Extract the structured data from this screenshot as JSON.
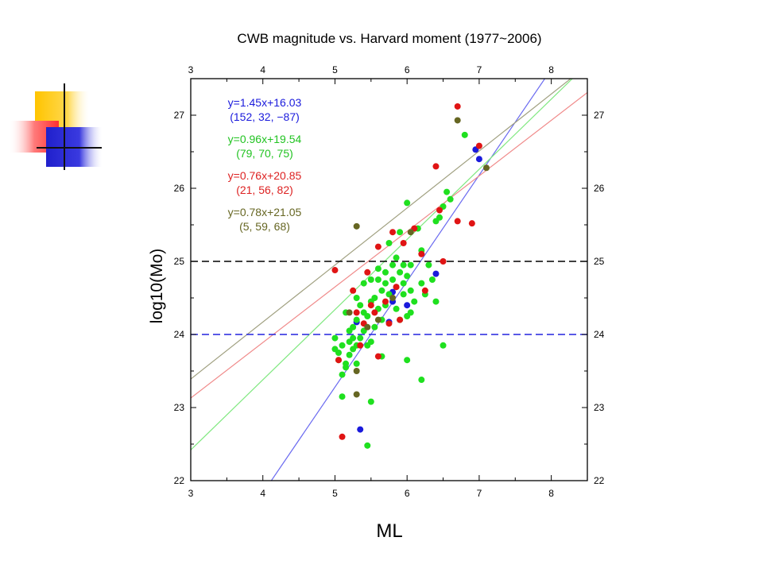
{
  "chart_data": {
    "type": "scatter",
    "title": "CWB magnitude vs. Harvard moment (1977~2006)",
    "xlabel": "ML",
    "ylabel": "log10(Mo)",
    "xlim": [
      3,
      8.5
    ],
    "ylim": [
      22,
      27.5
    ],
    "xticks": [
      "3",
      "4",
      "5",
      "6",
      "7",
      "8"
    ],
    "yticks": [
      "22",
      "23",
      "24",
      "25",
      "26",
      "27"
    ],
    "grid": false,
    "reference_lines": [
      {
        "y": 24,
        "color": "#2222dd",
        "style": "dashed"
      },
      {
        "y": 25,
        "color": "#000000",
        "style": "dashed"
      }
    ],
    "annotations": [
      {
        "equation": "y=1.45x+16.03",
        "params": "(152, 32, −87)",
        "color": "#1a1adc"
      },
      {
        "equation": "y=0.96x+19.54",
        "params": "(79, 70, 75)",
        "color": "#22c322"
      },
      {
        "equation": "y=0.76x+20.85",
        "params": "(21, 56, 82)",
        "color": "#dd2222"
      },
      {
        "equation": "y=0.78x+21.05",
        "params": "(5, 59, 68)",
        "color": "#666622"
      }
    ],
    "fit_lines": [
      {
        "slope": 1.45,
        "intercept": 16.03,
        "color": "#6a6af0"
      },
      {
        "slope": 0.96,
        "intercept": 19.54,
        "color": "#80e880"
      },
      {
        "slope": 0.76,
        "intercept": 20.85,
        "color": "#f08a8a"
      },
      {
        "slope": 0.78,
        "intercept": 21.05,
        "color": "#a0a080"
      }
    ],
    "series": [
      {
        "color": "#1a1adc",
        "points": [
          [
            5.3,
            24.17
          ],
          [
            5.75,
            24.17
          ],
          [
            5.8,
            24.58
          ],
          [
            5.8,
            24.45
          ],
          [
            6.0,
            24.4
          ],
          [
            6.4,
            24.83
          ],
          [
            6.95,
            26.53
          ],
          [
            7.0,
            26.4
          ],
          [
            5.35,
            22.7
          ]
        ]
      },
      {
        "color": "#1fe01f",
        "points": [
          [
            5.0,
            23.95
          ],
          [
            5.05,
            23.75
          ],
          [
            5.05,
            23.65
          ],
          [
            5.1,
            23.85
          ],
          [
            5.1,
            23.15
          ],
          [
            5.15,
            23.6
          ],
          [
            5.15,
            23.55
          ],
          [
            5.2,
            24.05
          ],
          [
            5.2,
            23.72
          ],
          [
            5.2,
            23.9
          ],
          [
            5.25,
            24.1
          ],
          [
            5.25,
            23.95
          ],
          [
            5.25,
            23.8
          ],
          [
            5.3,
            24.2
          ],
          [
            5.3,
            24.5
          ],
          [
            5.3,
            23.85
          ],
          [
            5.35,
            24.4
          ],
          [
            5.35,
            23.95
          ],
          [
            5.4,
            24.3
          ],
          [
            5.4,
            24.7
          ],
          [
            5.4,
            24.05
          ],
          [
            5.45,
            23.85
          ],
          [
            5.45,
            24.25
          ],
          [
            5.5,
            24.45
          ],
          [
            5.5,
            24.75
          ],
          [
            5.5,
            23.9
          ],
          [
            5.55,
            24.5
          ],
          [
            5.55,
            24.1
          ],
          [
            5.6,
            24.35
          ],
          [
            5.6,
            24.75
          ],
          [
            5.6,
            24.9
          ],
          [
            5.65,
            24.2
          ],
          [
            5.65,
            24.6
          ],
          [
            5.65,
            23.7
          ],
          [
            5.7,
            24.7
          ],
          [
            5.7,
            24.85
          ],
          [
            5.7,
            24.4
          ],
          [
            5.75,
            24.55
          ],
          [
            5.75,
            25.25
          ],
          [
            5.8,
            24.75
          ],
          [
            5.8,
            24.95
          ],
          [
            5.85,
            24.35
          ],
          [
            5.85,
            24.65
          ],
          [
            5.9,
            24.85
          ],
          [
            5.9,
            24.2
          ],
          [
            5.95,
            24.7
          ],
          [
            5.95,
            24.95
          ],
          [
            6.0,
            24.8
          ],
          [
            6.0,
            24.25
          ],
          [
            6.0,
            25.8
          ],
          [
            6.0,
            23.65
          ],
          [
            6.05,
            24.6
          ],
          [
            6.05,
            24.95
          ],
          [
            6.1,
            24.45
          ],
          [
            6.15,
            25.45
          ],
          [
            6.2,
            25.15
          ],
          [
            6.2,
            24.7
          ],
          [
            6.25,
            24.55
          ],
          [
            6.3,
            24.95
          ],
          [
            6.35,
            24.75
          ],
          [
            6.4,
            24.45
          ],
          [
            6.4,
            25.55
          ],
          [
            6.45,
            25.6
          ],
          [
            6.5,
            25.75
          ],
          [
            6.55,
            25.95
          ],
          [
            6.6,
            25.85
          ],
          [
            6.5,
            23.85
          ],
          [
            6.2,
            23.38
          ],
          [
            6.8,
            26.73
          ],
          [
            5.5,
            23.08
          ],
          [
            5.45,
            22.48
          ],
          [
            5.1,
            23.45
          ],
          [
            5.3,
            23.6
          ],
          [
            5.0,
            23.8
          ],
          [
            5.15,
            24.3
          ],
          [
            5.95,
            24.55
          ],
          [
            5.9,
            25.4
          ],
          [
            5.85,
            25.05
          ],
          [
            6.05,
            24.3
          ]
        ]
      },
      {
        "color": "#e01414",
        "points": [
          [
            5.0,
            24.88
          ],
          [
            5.05,
            23.65
          ],
          [
            5.1,
            22.6
          ],
          [
            5.25,
            24.6
          ],
          [
            5.3,
            24.3
          ],
          [
            5.35,
            23.85
          ],
          [
            5.4,
            24.15
          ],
          [
            5.45,
            24.85
          ],
          [
            5.5,
            24.4
          ],
          [
            5.55,
            24.3
          ],
          [
            5.6,
            25.2
          ],
          [
            5.6,
            23.7
          ],
          [
            5.7,
            24.45
          ],
          [
            5.75,
            24.15
          ],
          [
            5.8,
            25.4
          ],
          [
            5.85,
            24.65
          ],
          [
            5.9,
            24.2
          ],
          [
            5.95,
            25.25
          ],
          [
            6.1,
            25.45
          ],
          [
            6.2,
            25.1
          ],
          [
            6.25,
            24.6
          ],
          [
            6.4,
            26.3
          ],
          [
            6.45,
            25.7
          ],
          [
            6.5,
            25.0
          ],
          [
            6.7,
            25.55
          ],
          [
            6.9,
            25.52
          ],
          [
            6.7,
            27.12
          ],
          [
            7.0,
            26.58
          ]
        ]
      },
      {
        "color": "#666622",
        "points": [
          [
            5.3,
            25.48
          ],
          [
            5.3,
            23.5
          ],
          [
            5.3,
            23.18
          ],
          [
            5.2,
            24.3
          ],
          [
            5.45,
            24.1
          ],
          [
            5.6,
            24.2
          ],
          [
            5.8,
            24.5
          ],
          [
            6.05,
            25.4
          ],
          [
            6.7,
            26.93
          ],
          [
            7.1,
            26.28
          ]
        ]
      }
    ]
  }
}
